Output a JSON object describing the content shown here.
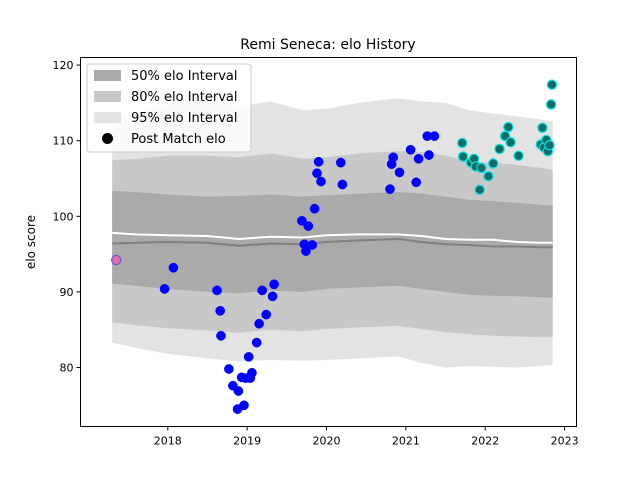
{
  "chart_data": {
    "type": "line",
    "title": "Remi Seneca: elo History",
    "xlabel": "",
    "ylabel": "elo score",
    "xlim": [
      2016.9,
      2023.15
    ],
    "ylim": [
      72.2,
      121.0
    ],
    "x_ticks": [
      {
        "value": 2018,
        "label": "2018"
      },
      {
        "value": 2019,
        "label": "2019"
      },
      {
        "value": 2020,
        "label": "2020"
      },
      {
        "value": 2021,
        "label": "2021"
      },
      {
        "value": 2022,
        "label": "2022"
      },
      {
        "value": 2023,
        "label": "2023"
      }
    ],
    "y_ticks": [
      {
        "value": 80,
        "label": "80"
      },
      {
        "value": 90,
        "label": "90"
      },
      {
        "value": 100,
        "label": "100"
      },
      {
        "value": 110,
        "label": "110"
      },
      {
        "value": 120,
        "label": "120"
      }
    ],
    "grid": false,
    "legend_position": "top-left",
    "legend": [
      {
        "key": "band50",
        "label": "50% elo Interval"
      },
      {
        "key": "band80",
        "label": "80% elo Interval"
      },
      {
        "key": "band95",
        "label": "95% elo Interval"
      },
      {
        "key": "points",
        "label": "Post Match elo"
      }
    ],
    "colors": {
      "band50": "#aaaaaa",
      "band80": "#c8c8c8",
      "band95": "#e3e3e3",
      "mean_line": "#ffffff",
      "median_line": "#808080",
      "point_blue": "#0000ff",
      "point_teal": "#0f6b66",
      "point_teal_edge": "#00e5e5",
      "point_pink": "#e070a8",
      "point_pink_edge": "#6a5acd"
    },
    "bands": {
      "x": [
        2017.3,
        2017.6,
        2018.0,
        2018.5,
        2018.9,
        2019.3,
        2019.7,
        2020.0,
        2020.4,
        2020.9,
        2021.2,
        2021.5,
        2021.8,
        2022.1,
        2022.4,
        2022.7,
        2022.85
      ],
      "p95_high": [
        112.5,
        113.6,
        114.8,
        116.2,
        114.5,
        115.2,
        114.0,
        114.2,
        115.0,
        115.6,
        115.2,
        115.0,
        114.0,
        113.6,
        113.2,
        112.8,
        112.5
      ],
      "p80_high": [
        107.4,
        107.6,
        108.0,
        108.0,
        107.8,
        108.3,
        107.6,
        107.8,
        108.3,
        108.6,
        108.5,
        108.0,
        107.2,
        107.1,
        106.8,
        106.4,
        106.1
      ],
      "p50_high": [
        103.4,
        103.2,
        102.9,
        102.6,
        102.7,
        102.9,
        102.6,
        102.8,
        103.0,
        103.2,
        103.0,
        102.6,
        102.2,
        102.0,
        101.8,
        101.5,
        101.4
      ],
      "mean": [
        97.8,
        97.6,
        97.5,
        97.4,
        97.0,
        97.3,
        97.2,
        97.5,
        97.6,
        97.6,
        97.4,
        97.0,
        96.9,
        96.9,
        96.6,
        96.5,
        96.5
      ],
      "median": [
        96.4,
        96.5,
        96.6,
        96.5,
        96.1,
        96.4,
        96.3,
        96.6,
        96.8,
        97.0,
        96.6,
        96.3,
        96.2,
        96.0,
        96.0,
        95.9,
        95.9
      ],
      "p50_low": [
        91.1,
        90.8,
        90.4,
        90.0,
        89.8,
        90.2,
        90.0,
        90.4,
        90.6,
        90.8,
        90.4,
        90.0,
        89.6,
        89.5,
        89.4,
        89.3,
        89.3
      ],
      "p80_low": [
        86.0,
        85.6,
        85.2,
        84.9,
        84.6,
        85.0,
        84.8,
        85.1,
        85.3,
        85.5,
        85.1,
        84.7,
        84.4,
        84.2,
        84.1,
        84.0,
        84.0
      ],
      "p95_low": [
        83.3,
        82.6,
        81.8,
        81.2,
        80.8,
        81.0,
        80.9,
        81.0,
        81.2,
        81.5,
        80.6,
        80.0,
        80.2,
        80.1,
        80.0,
        80.2,
        80.3
      ]
    },
    "series": [
      {
        "kind": "scatter",
        "style": "pink",
        "x": [
          2017.35
        ],
        "y": [
          94.2
        ]
      },
      {
        "kind": "scatter",
        "style": "blue",
        "x": [
          2017.96,
          2018.07,
          2018.62,
          2018.66,
          2018.67,
          2018.77,
          2018.82,
          2018.88,
          2018.89,
          2018.93,
          2018.96,
          2018.98,
          2019.02,
          2019.04,
          2019.06,
          2019.12,
          2019.15,
          2019.19,
          2019.24,
          2019.32,
          2019.34,
          2019.69,
          2019.72,
          2019.74,
          2019.77,
          2019.82,
          2019.85,
          2019.88,
          2019.9,
          2019.93,
          2020.18,
          2020.2,
          2020.8,
          2020.82,
          2020.84,
          2020.92,
          2021.06,
          2021.13,
          2021.16,
          2021.27,
          2021.29,
          2021.36
        ],
        "y": [
          90.4,
          93.2,
          90.2,
          87.5,
          84.2,
          79.8,
          77.6,
          74.5,
          76.9,
          78.7,
          75.0,
          78.6,
          81.4,
          78.6,
          79.3,
          83.3,
          85.8,
          90.2,
          87.0,
          89.4,
          91.0,
          99.4,
          96.3,
          95.4,
          98.7,
          96.2,
          101.0,
          105.7,
          107.2,
          104.6,
          107.1,
          104.2,
          103.6,
          106.9,
          107.8,
          105.8,
          108.8,
          104.5,
          107.6,
          110.6,
          108.1,
          110.6
        ]
      },
      {
        "kind": "scatter",
        "style": "teal",
        "x": [
          2021.71,
          2021.72,
          2021.82,
          2021.86,
          2021.88,
          2021.93,
          2021.95,
          2022.04,
          2022.1,
          2022.18,
          2022.25,
          2022.29,
          2022.32,
          2022.42,
          2022.7,
          2022.72,
          2022.74,
          2022.77,
          2022.79,
          2022.81,
          2022.83,
          2022.84
        ],
        "y": [
          109.7,
          107.9,
          107.1,
          107.6,
          106.6,
          103.5,
          106.4,
          105.3,
          107.0,
          108.9,
          110.6,
          111.8,
          109.8,
          108.0,
          109.5,
          111.7,
          109.1,
          110.1,
          108.6,
          109.4,
          114.8,
          117.4
        ]
      }
    ]
  }
}
